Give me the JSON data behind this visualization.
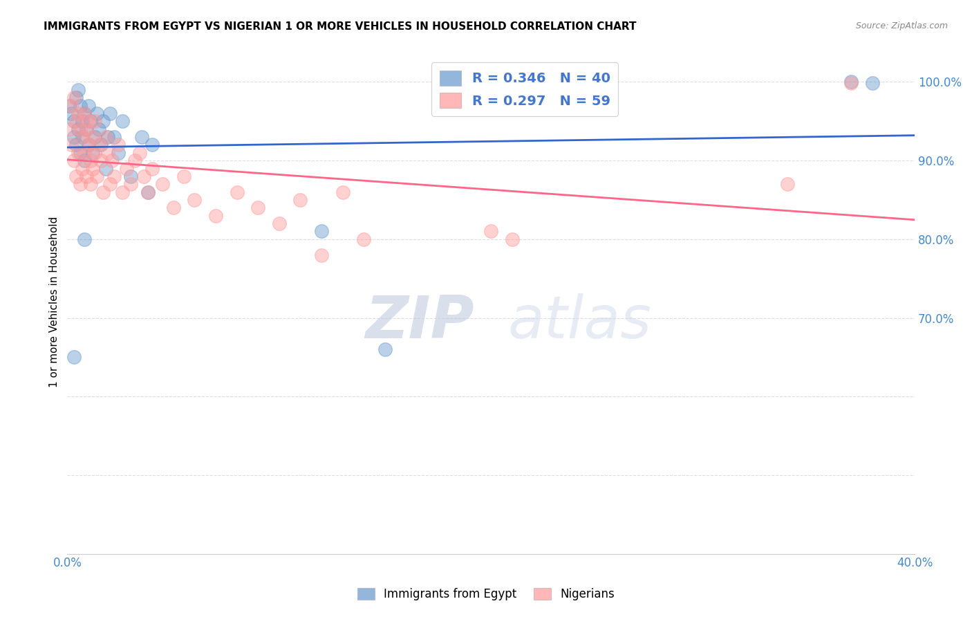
{
  "title": "IMMIGRANTS FROM EGYPT VS NIGERIAN 1 OR MORE VEHICLES IN HOUSEHOLD CORRELATION CHART",
  "source": "Source: ZipAtlas.com",
  "ylabel": "1 or more Vehicles in Household",
  "legend_bottom": [
    "Immigrants from Egypt",
    "Nigerians"
  ],
  "egypt_R": 0.346,
  "egypt_N": 40,
  "nigeria_R": 0.297,
  "nigeria_N": 59,
  "xlim": [
    0.0,
    0.4
  ],
  "ylim": [
    0.4,
    1.04
  ],
  "xticks": [
    0.0,
    0.05,
    0.1,
    0.15,
    0.2,
    0.25,
    0.3,
    0.35,
    0.4
  ],
  "yticks": [
    0.4,
    0.5,
    0.6,
    0.7,
    0.8,
    0.9,
    1.0
  ],
  "egypt_color": "#6699cc",
  "nigeria_color": "#ff9999",
  "egypt_line_color": "#3366cc",
  "nigeria_line_color": "#ff6688",
  "egypt_x": [
    0.001,
    0.002,
    0.003,
    0.003,
    0.004,
    0.004,
    0.005,
    0.005,
    0.006,
    0.006,
    0.007,
    0.007,
    0.008,
    0.008,
    0.009,
    0.01,
    0.01,
    0.011,
    0.012,
    0.013,
    0.014,
    0.015,
    0.016,
    0.017,
    0.018,
    0.019,
    0.02,
    0.022,
    0.024,
    0.026,
    0.03,
    0.035,
    0.038,
    0.04,
    0.008,
    0.12,
    0.15,
    0.003,
    0.37,
    0.38
  ],
  "egypt_y": [
    0.97,
    0.96,
    0.95,
    0.93,
    0.98,
    0.92,
    0.99,
    0.94,
    0.91,
    0.97,
    0.95,
    0.93,
    0.96,
    0.9,
    0.94,
    0.97,
    0.92,
    0.95,
    0.91,
    0.93,
    0.96,
    0.94,
    0.92,
    0.95,
    0.89,
    0.93,
    0.96,
    0.93,
    0.91,
    0.95,
    0.88,
    0.93,
    0.86,
    0.92,
    0.8,
    0.81,
    0.66,
    0.65,
    1.0,
    0.999
  ],
  "nigeria_x": [
    0.001,
    0.002,
    0.002,
    0.003,
    0.003,
    0.004,
    0.004,
    0.005,
    0.005,
    0.006,
    0.006,
    0.007,
    0.007,
    0.008,
    0.008,
    0.009,
    0.009,
    0.01,
    0.01,
    0.011,
    0.011,
    0.012,
    0.012,
    0.013,
    0.013,
    0.014,
    0.015,
    0.016,
    0.017,
    0.018,
    0.019,
    0.02,
    0.021,
    0.022,
    0.024,
    0.026,
    0.028,
    0.03,
    0.032,
    0.034,
    0.036,
    0.038,
    0.04,
    0.045,
    0.05,
    0.055,
    0.06,
    0.07,
    0.08,
    0.09,
    0.1,
    0.11,
    0.12,
    0.13,
    0.14,
    0.2,
    0.21,
    0.34,
    0.37
  ],
  "nigeria_y": [
    0.94,
    0.97,
    0.92,
    0.98,
    0.9,
    0.95,
    0.88,
    0.96,
    0.91,
    0.94,
    0.87,
    0.93,
    0.89,
    0.96,
    0.91,
    0.94,
    0.88,
    0.92,
    0.95,
    0.9,
    0.87,
    0.93,
    0.89,
    0.91,
    0.95,
    0.88,
    0.92,
    0.9,
    0.86,
    0.93,
    0.91,
    0.87,
    0.9,
    0.88,
    0.92,
    0.86,
    0.89,
    0.87,
    0.9,
    0.91,
    0.88,
    0.86,
    0.89,
    0.87,
    0.84,
    0.88,
    0.85,
    0.83,
    0.86,
    0.84,
    0.82,
    0.85,
    0.78,
    0.86,
    0.8,
    0.81,
    0.8,
    0.87,
    0.999
  ],
  "watermark_zip": "ZIP",
  "watermark_atlas": "atlas",
  "background_color": "#ffffff",
  "grid_color": "#dddddd"
}
